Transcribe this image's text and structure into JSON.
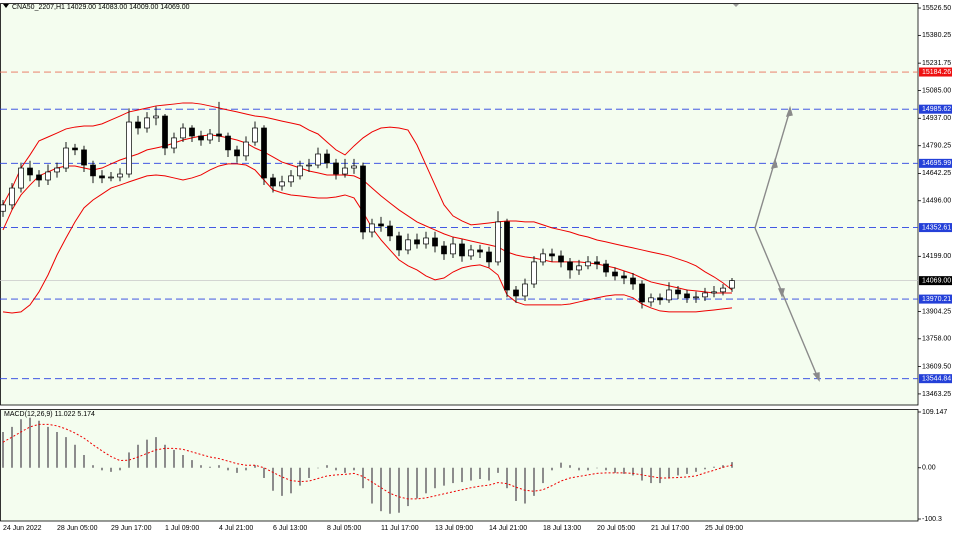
{
  "chart_data": [
    {
      "type": "candlestick",
      "title": "CNA50_2207,H1  14029.00 14083.00 14009.00 14069.00",
      "categories": [
        "24 Jun 2022",
        null,
        null,
        null,
        null,
        null,
        "28 Jun 05:00",
        null,
        null,
        null,
        null,
        null,
        "29 Jun 17:00",
        null,
        null,
        null,
        null,
        null,
        "1 Jul 09:00",
        null,
        null,
        null,
        null,
        null,
        "4 Jul 21:00",
        null,
        null,
        null,
        null,
        null,
        "6 Jul 13:00",
        null,
        null,
        null,
        null,
        null,
        "8 Jul 05:00",
        null,
        null,
        null,
        null,
        null,
        "11 Jul 17:00",
        null,
        null,
        null,
        null,
        null,
        "13 Jul 09:00",
        null,
        null,
        null,
        null,
        null,
        "14 Jul 21:00",
        null,
        null,
        null,
        null,
        null,
        "18 Jul 13:00",
        null,
        null,
        null,
        null,
        null,
        "20 Jul 05:00",
        null,
        null,
        null,
        null,
        null,
        "21 Jul 17:00",
        null,
        null,
        null,
        null,
        null,
        "25 Jul 09:00",
        null,
        null,
        null
      ],
      "open": [
        14440,
        14474,
        14564,
        14671,
        14634,
        14607,
        14650,
        14671,
        14778,
        14768,
        14687,
        14629,
        14618,
        14623,
        14639,
        14917,
        14885,
        14939,
        14949,
        14778,
        14832,
        14885,
        14842,
        14821,
        14853,
        14842,
        14768,
        14736,
        14810,
        14885,
        14618,
        14575,
        14597,
        14629,
        14682,
        14687,
        14746,
        14698,
        14639,
        14671,
        14682,
        14329,
        14372,
        14361,
        14308,
        14233,
        14287,
        14265,
        14297,
        14254,
        14212,
        14265,
        14201,
        14233,
        14222,
        14169,
        14383,
        14019,
        13987,
        14051,
        14169,
        14212,
        14201,
        14169,
        14126,
        14148,
        14169,
        14158,
        14115,
        14094,
        14083,
        14051,
        13955,
        13977,
        13966,
        14019,
        13998,
        13977,
        13982,
        14003,
        14009,
        14029
      ],
      "high": [
        14500,
        14590,
        14700,
        14710,
        14660,
        14690,
        14700,
        14810,
        14800,
        14790,
        14710,
        14660,
        14650,
        14670,
        14990,
        14950,
        14970,
        15000,
        14960,
        14860,
        14910,
        14900,
        14870,
        14880,
        15025,
        14860,
        14790,
        14840,
        14920,
        14900,
        14640,
        14630,
        14660,
        14710,
        14720,
        14780,
        14770,
        14720,
        14720,
        14720,
        14700,
        14400,
        14410,
        14390,
        14330,
        14320,
        14320,
        14330,
        14330,
        14280,
        14300,
        14290,
        14260,
        14260,
        14250,
        14440,
        14400,
        14040,
        14080,
        14200,
        14240,
        14240,
        14230,
        14190,
        14180,
        14200,
        14200,
        14180,
        14140,
        14120,
        14110,
        14070,
        14000,
        14000,
        14060,
        14040,
        14020,
        14010,
        14030,
        14040,
        14050,
        14083
      ],
      "low": [
        14410,
        14450,
        14540,
        14600,
        14570,
        14580,
        14620,
        14650,
        14740,
        14650,
        14590,
        14590,
        14600,
        14600,
        14620,
        14850,
        14860,
        14900,
        14740,
        14750,
        14810,
        14810,
        14790,
        14800,
        14810,
        14730,
        14700,
        14710,
        14790,
        14580,
        14540,
        14550,
        14570,
        14610,
        14650,
        14670,
        14670,
        14610,
        14620,
        14640,
        14290,
        14300,
        14330,
        14280,
        14200,
        14210,
        14240,
        14240,
        14220,
        14180,
        14190,
        14170,
        14180,
        14190,
        14140,
        14150,
        13980,
        13950,
        13960,
        14030,
        14150,
        14170,
        14140,
        14080,
        14100,
        14130,
        14130,
        14090,
        14070,
        14050,
        14020,
        13920,
        13930,
        13940,
        13950,
        13970,
        13950,
        13950,
        13960,
        13980,
        13990,
        14009
      ],
      "close": [
        14474,
        14564,
        14671,
        14634,
        14607,
        14650,
        14671,
        14778,
        14768,
        14687,
        14629,
        14618,
        14623,
        14639,
        14917,
        14885,
        14939,
        14949,
        14778,
        14832,
        14885,
        14842,
        14821,
        14853,
        14842,
        14768,
        14736,
        14810,
        14885,
        14618,
        14575,
        14597,
        14629,
        14682,
        14687,
        14746,
        14698,
        14639,
        14671,
        14682,
        14329,
        14372,
        14361,
        14308,
        14233,
        14287,
        14265,
        14297,
        14254,
        14212,
        14265,
        14201,
        14233,
        14222,
        14169,
        14383,
        14019,
        13987,
        14051,
        14169,
        14212,
        14201,
        14169,
        14126,
        14148,
        14169,
        14158,
        14115,
        14094,
        14083,
        14051,
        13955,
        13977,
        13966,
        14019,
        13998,
        13977,
        13982,
        14003,
        14009,
        14029,
        14069
      ],
      "color_up": "#ffffff",
      "color_down": "#000000",
      "bands": {
        "color": "#ee0000",
        "upper": [
          14474,
          14564,
          14671,
          14741,
          14816,
          14837,
          14858,
          14880,
          14890,
          14896,
          14896,
          14907,
          14928,
          14949,
          14971,
          14981,
          14992,
          15003,
          15008,
          15013,
          15019,
          15019,
          15013,
          15003,
          14992,
          14981,
          14971,
          14960,
          14949,
          14944,
          14933,
          14922,
          14912,
          14901,
          14874,
          14853,
          14810,
          14768,
          14741,
          14789,
          14832,
          14864,
          14885,
          14890,
          14885,
          14874,
          14794,
          14687,
          14580,
          14474,
          14415,
          14388,
          14367,
          14372,
          14377,
          14383,
          14388,
          14388,
          14383,
          14383,
          14367,
          14351,
          14340,
          14329,
          14313,
          14302,
          14286,
          14276,
          14265,
          14254,
          14244,
          14233,
          14222,
          14212,
          14201,
          14185,
          14169,
          14148,
          14116,
          14089,
          14057,
          14019
        ],
        "middle": [
          14340,
          14447,
          14527,
          14580,
          14629,
          14650,
          14671,
          14682,
          14682,
          14671,
          14661,
          14671,
          14693,
          14714,
          14730,
          14746,
          14768,
          14778,
          14789,
          14805,
          14821,
          14832,
          14842,
          14848,
          14842,
          14832,
          14821,
          14805,
          14778,
          14757,
          14730,
          14703,
          14687,
          14671,
          14655,
          14645,
          14634,
          14634,
          14634,
          14629,
          14607,
          14564,
          14522,
          14484,
          14447,
          14415,
          14383,
          14361,
          14340,
          14319,
          14302,
          14292,
          14281,
          14270,
          14260,
          14249,
          14222,
          14206,
          14196,
          14190,
          14180,
          14169,
          14169,
          14169,
          14169,
          14164,
          14158,
          14148,
          14137,
          14121,
          14105,
          14083,
          14062,
          14051,
          14041,
          14030,
          14019,
          14014,
          14009,
          14003,
          14003,
          14003
        ],
        "lower": [
          13902,
          13896,
          13902,
          13939,
          14009,
          14099,
          14206,
          14297,
          14383,
          14458,
          14500,
          14532,
          14564,
          14580,
          14597,
          14613,
          14629,
          14634,
          14629,
          14618,
          14607,
          14618,
          14634,
          14661,
          14682,
          14693,
          14693,
          14687,
          14661,
          14607,
          14554,
          14538,
          14527,
          14522,
          14516,
          14511,
          14511,
          14516,
          14527,
          14511,
          14436,
          14351,
          14287,
          14233,
          14180,
          14148,
          14126,
          14094,
          14073,
          14083,
          14115,
          14137,
          14148,
          14153,
          14137,
          14099,
          13993,
          13955,
          13939,
          13939,
          13939,
          13939,
          13939,
          13944,
          13955,
          13966,
          13977,
          13987,
          13993,
          13993,
          13977,
          13944,
          13923,
          13907,
          13902,
          13902,
          13902,
          13902,
          13907,
          13912,
          13918,
          13923
        ]
      },
      "levels": [
        {
          "value": 15184.26,
          "color": "#e8705a",
          "box": "#ee1111"
        },
        {
          "value": 14985.62,
          "color": "#2840e0",
          "box": "#2440d8"
        },
        {
          "value": 14695.99,
          "color": "#2840e0",
          "box": "#2440d8"
        },
        {
          "value": 14352.61,
          "color": "#2840e0",
          "box": "#2440d8"
        },
        {
          "value": 13970.21,
          "color": "#2840e0",
          "box": "#2440d8"
        },
        {
          "value": 13544.84,
          "color": "#2840e0",
          "box": "#2440d8"
        }
      ],
      "current": {
        "value": 14069,
        "label": "14069.00"
      },
      "ylim": [
        13404,
        15548
      ],
      "yticks": [
        {
          "value": 15526.5,
          "label": "15526.50"
        },
        15380.25,
        15231.75,
        {
          "value": 15085,
          "label": "15085.00"
        },
        {
          "value": 14937,
          "label": "14937.00"
        },
        14790.25,
        14642.25,
        {
          "value": 14496,
          "label": "14496.00"
        },
        {
          "value": 14199,
          "label": "14199.00"
        },
        13904.25,
        {
          "value": 13758,
          "label": "13758.00"
        },
        {
          "value": 13609.5,
          "label": "13609.50"
        },
        13463.25
      ]
    },
    {
      "type": "bar",
      "title": "MACD(12,26,9) 11.022 5.174",
      "color": "#8c8c8c",
      "values": [
        70,
        80,
        95,
        98,
        92,
        80,
        70,
        60,
        45,
        25,
        5,
        -5,
        -8,
        -5,
        30,
        45,
        55,
        60,
        45,
        35,
        25,
        15,
        5,
        2,
        5,
        -5,
        -10,
        -5,
        5,
        -20,
        -45,
        -55,
        -50,
        -35,
        -20,
        0,
        5,
        -5,
        -10,
        -5,
        -40,
        -70,
        -85,
        -90,
        -88,
        -75,
        -60,
        -50,
        -40,
        -35,
        -30,
        -28,
        -25,
        -22,
        -25,
        -10,
        -40,
        -65,
        -70,
        -55,
        -30,
        -5,
        10,
        5,
        -5,
        -5,
        0,
        -5,
        -10,
        -12,
        -15,
        -25,
        -30,
        -30,
        -20,
        -15,
        -12,
        -8,
        -3,
        2,
        5,
        11.022
      ],
      "signal": {
        "color": "#ee0000",
        "values": [
          50,
          60,
          70,
          80,
          85,
          85,
          82,
          76,
          68,
          58,
          45,
          33,
          22,
          14,
          15,
          21,
          28,
          35,
          38,
          38,
          36,
          31,
          26,
          21,
          18,
          13,
          8,
          5,
          5,
          0,
          -9,
          -18,
          -25,
          -27,
          -26,
          -21,
          -16,
          -14,
          -13,
          -11,
          -17,
          -28,
          -39,
          -50,
          -57,
          -61,
          -61,
          -59,
          -55,
          -51,
          -47,
          -43,
          -39,
          -36,
          -34,
          -29,
          -31,
          -38,
          -44,
          -46,
          -43,
          -35,
          -26,
          -20,
          -17,
          -14,
          -11,
          -10,
          -10,
          -10,
          -11,
          -14,
          -17,
          -20,
          -20,
          -19,
          -18,
          -16,
          -10,
          -5,
          1,
          5.174
        ]
      },
      "ylim": [
        -104.2,
        115
      ],
      "yticks": [
        109.147,
        {
          "value": 0,
          "label": "0.00"
        },
        -100.3
      ]
    }
  ]
}
